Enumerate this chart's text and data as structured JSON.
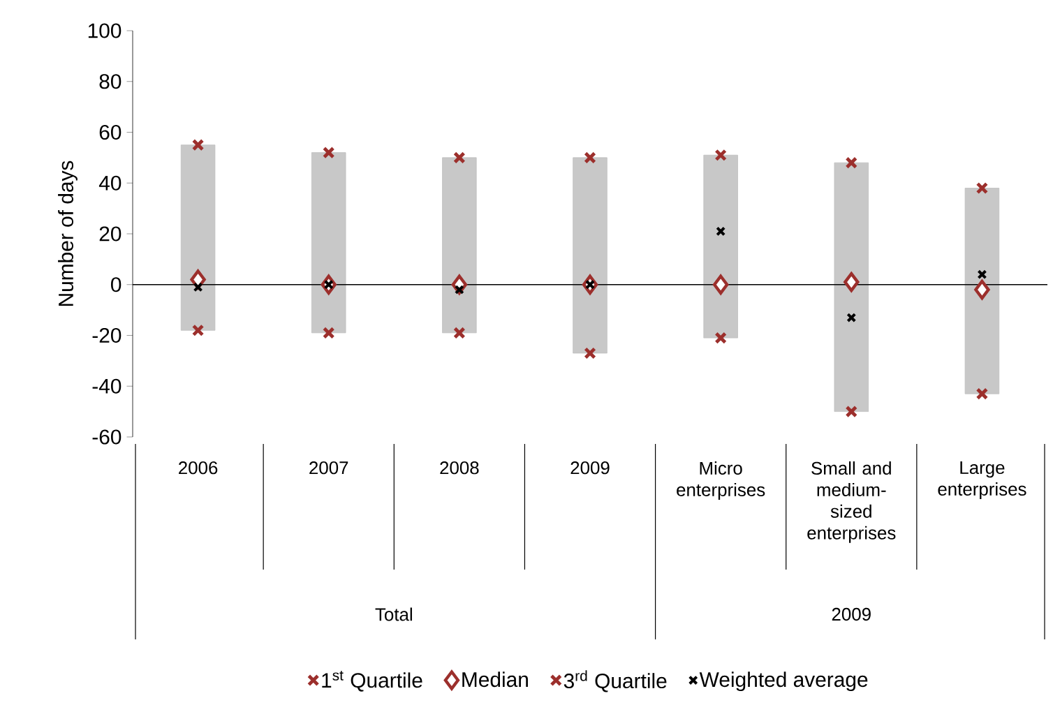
{
  "chart_data": {
    "type": "bar",
    "ylabel": "Number of days",
    "categories": [
      "2006",
      "2007",
      "2008",
      "2009",
      "Micro enterprises",
      "Small and medium-sized enterprises",
      "Large enterprises"
    ],
    "series": [
      {
        "color": "#c8c8c8",
        "base": [
          -18,
          -19,
          -19,
          -27,
          -21,
          -50,
          -43
        ],
        "values": [
          73,
          71,
          69,
          77,
          72,
          98,
          81
        ]
      },
      {
        "type": "scatter",
        "name": "1$^{st}$ Quartile",
        "color": "#9c2f2c",
        "marker": "cross",
        "values": [
          -18,
          -19,
          -19,
          -27,
          -21,
          -50,
          -43
        ]
      },
      {
        "type": "scatter",
        "name": "Median",
        "color": "#9c2f2c",
        "marker": "diamond",
        "values": [
          2,
          0,
          0,
          0,
          0,
          1,
          -2
        ]
      },
      {
        "type": "scatter",
        "name": "3$^{rd}$ Quartile",
        "color": "#9c2f2c",
        "marker": "cross",
        "values": [
          55,
          52,
          50,
          50,
          51,
          48,
          38
        ]
      },
      {
        "type": "scatter",
        "name": "Weighted average",
        "color": "#000000",
        "marker": "cross",
        "values": [
          -1,
          0,
          -2,
          0,
          21,
          -13,
          4
        ]
      }
    ],
    "annotations": [
      "Total",
      "2009"
    ],
    "ylim": [
      -60,
      100
    ],
    "yticks": [
      -60,
      -40,
      -20,
      0,
      20,
      40,
      60,
      80,
      100
    ],
    "legend": "bottom"
  }
}
